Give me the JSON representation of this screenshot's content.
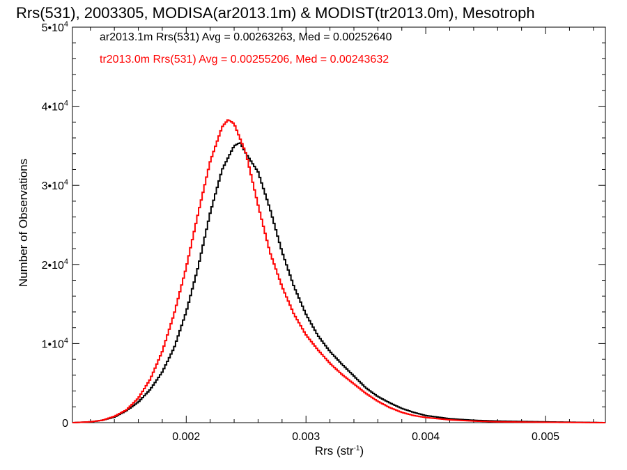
{
  "title": "Rrs(531), 2003305, MODISA(ar2013.1m) & MODIST(tr2013.0m), Mesotroph",
  "colors": {
    "axis": "#000000",
    "series_a": "#000000",
    "series_t": "#ff0000"
  },
  "chart_data": {
    "type": "histogram",
    "title": "Rrs(531), 2003305, MODISA(ar2013.1m) & MODIST(tr2013.0m), Mesotroph",
    "xlabel": "Rrs (str",
    "xlabel_sup": "-1",
    "xlabel_tail": ")",
    "ylabel": "Number of Observations",
    "xlim": [
      0.00105,
      0.0055
    ],
    "ylim": [
      0,
      50000
    ],
    "x_ticks": [
      0.002,
      0.003,
      0.004,
      0.005
    ],
    "x_tick_labels": [
      "0.002",
      "0.003",
      "0.004",
      "0.005"
    ],
    "y_ticks": [
      0,
      10000,
      20000,
      30000,
      40000,
      50000
    ],
    "y_tick_labels": [
      {
        "base": "0",
        "exp": ""
      },
      {
        "base": "1•10",
        "exp": "4"
      },
      {
        "base": "2•10",
        "exp": "4"
      },
      {
        "base": "3•10",
        "exp": "4"
      },
      {
        "base": "4•10",
        "exp": "4"
      },
      {
        "base": "5•10",
        "exp": "4"
      }
    ],
    "legend": [
      {
        "text": "ar2013.1m Rrs(531) Avg = 0.00263263, Med = 0.00252640",
        "color": "#000000"
      },
      {
        "text": "tr2013.0m Rrs(531) Avg = 0.00255206, Med = 0.00243632",
        "color": "#ff0000"
      }
    ],
    "series": [
      {
        "name": "ar2013.1m",
        "color": "#000000",
        "step": true,
        "points": [
          [
            0.00105,
            0
          ],
          [
            0.0012,
            100
          ],
          [
            0.0013,
            300
          ],
          [
            0.0014,
            700
          ],
          [
            0.0015,
            1500
          ],
          [
            0.0016,
            2600
          ],
          [
            0.0017,
            4200
          ],
          [
            0.0018,
            6400
          ],
          [
            0.0019,
            9500
          ],
          [
            0.002,
            14000
          ],
          [
            0.0021,
            19700
          ],
          [
            0.0022,
            26500
          ],
          [
            0.0023,
            32000
          ],
          [
            0.0024,
            35000
          ],
          [
            0.00245,
            35400
          ],
          [
            0.0025,
            34000
          ],
          [
            0.0026,
            31700
          ],
          [
            0.0027,
            27000
          ],
          [
            0.0028,
            21600
          ],
          [
            0.0029,
            17200
          ],
          [
            0.003,
            13700
          ],
          [
            0.0031,
            11000
          ],
          [
            0.0032,
            9000
          ],
          [
            0.0033,
            7400
          ],
          [
            0.0034,
            5900
          ],
          [
            0.0035,
            4400
          ],
          [
            0.0036,
            3300
          ],
          [
            0.0037,
            2500
          ],
          [
            0.0038,
            1800
          ],
          [
            0.0039,
            1300
          ],
          [
            0.004,
            900
          ],
          [
            0.0042,
            500
          ],
          [
            0.0044,
            300
          ],
          [
            0.0046,
            200
          ],
          [
            0.005,
            100
          ],
          [
            0.0055,
            0
          ]
        ]
      },
      {
        "name": "tr2013.0m",
        "color": "#ff0000",
        "step": true,
        "points": [
          [
            0.00105,
            0
          ],
          [
            0.0012,
            100
          ],
          [
            0.0013,
            300
          ],
          [
            0.0014,
            800
          ],
          [
            0.0015,
            1600
          ],
          [
            0.0016,
            3100
          ],
          [
            0.0017,
            5500
          ],
          [
            0.0018,
            9000
          ],
          [
            0.0019,
            13800
          ],
          [
            0.002,
            19600
          ],
          [
            0.0021,
            26500
          ],
          [
            0.0022,
            33000
          ],
          [
            0.0023,
            37400
          ],
          [
            0.00235,
            38300
          ],
          [
            0.0024,
            37800
          ],
          [
            0.0025,
            34000
          ],
          [
            0.0026,
            27500
          ],
          [
            0.0027,
            21500
          ],
          [
            0.0028,
            17200
          ],
          [
            0.0029,
            13700
          ],
          [
            0.003,
            11100
          ],
          [
            0.0031,
            9200
          ],
          [
            0.0032,
            7500
          ],
          [
            0.0033,
            6100
          ],
          [
            0.0034,
            4900
          ],
          [
            0.0035,
            3700
          ],
          [
            0.0036,
            2700
          ],
          [
            0.0037,
            1900
          ],
          [
            0.0038,
            1300
          ],
          [
            0.0039,
            900
          ],
          [
            0.004,
            650
          ],
          [
            0.0042,
            350
          ],
          [
            0.0044,
            200
          ],
          [
            0.0046,
            100
          ],
          [
            0.005,
            50
          ],
          [
            0.0055,
            0
          ]
        ]
      }
    ]
  }
}
